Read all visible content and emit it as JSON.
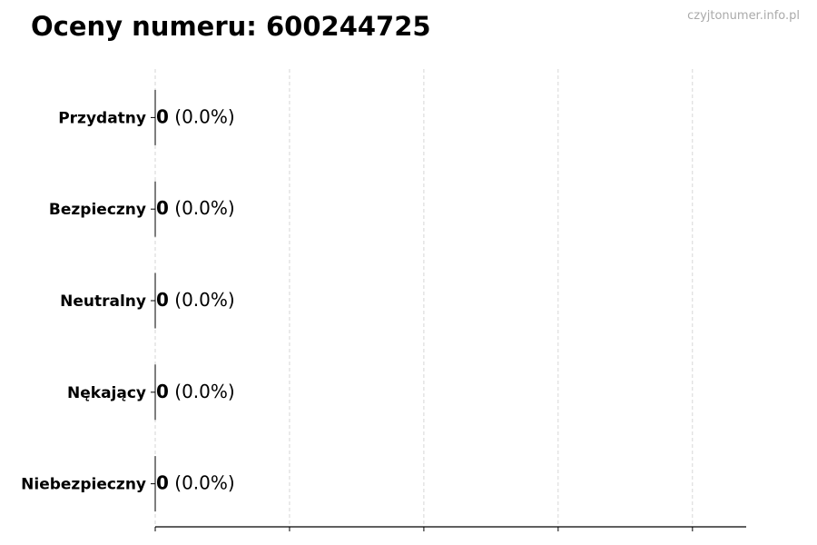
{
  "title": "Oceny numeru: 600244725",
  "watermark": "czyjtonumer.info.pl",
  "chart_data": {
    "type": "bar",
    "orientation": "horizontal",
    "title": "Oceny numeru: 600244725",
    "categories": [
      "Przydatny",
      "Bezpieczny",
      "Neutralny",
      "Nękający",
      "Niebezpieczny"
    ],
    "values": [
      0,
      0,
      0,
      0,
      0
    ],
    "labels": [
      {
        "count": "0",
        "pct": "(0.0%)"
      },
      {
        "count": "0",
        "pct": "(0.0%)"
      },
      {
        "count": "0",
        "pct": "(0.0%)"
      },
      {
        "count": "0",
        "pct": "(0.0%)"
      },
      {
        "count": "0",
        "pct": "(0.0%)"
      }
    ],
    "xlim": [
      0,
      0.88
    ],
    "xticks": [
      0,
      0.2,
      0.4,
      0.6,
      0.8
    ],
    "xtick_labels_shown": false,
    "grid": "x dashed",
    "bar_edge_color": "#000000",
    "grid_color": "#cccccc"
  }
}
